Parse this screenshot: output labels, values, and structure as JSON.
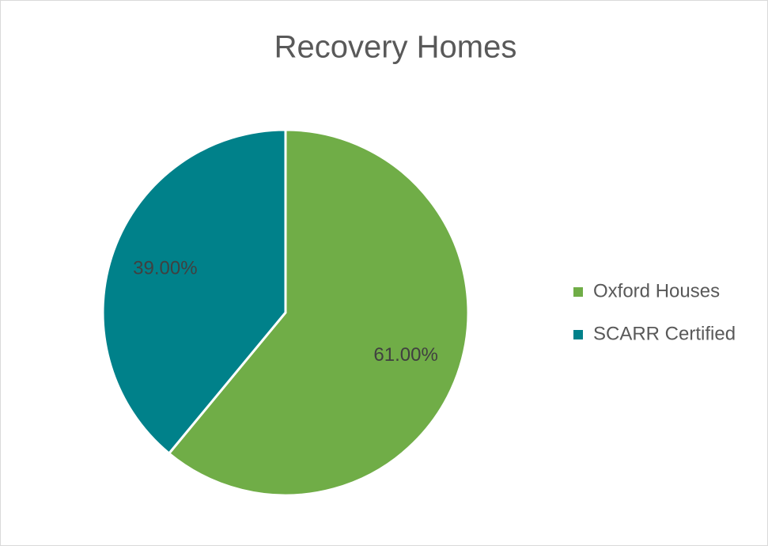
{
  "chart_data": {
    "type": "pie",
    "title": "Recovery Homes",
    "categories": [
      "Oxford Houses",
      "SCARR Certified"
    ],
    "values": [
      61,
      39
    ],
    "value_labels": [
      "61.00%",
      "39.00%"
    ],
    "colors": [
      "#70ad47",
      "#00818a"
    ],
    "legend": "right"
  }
}
